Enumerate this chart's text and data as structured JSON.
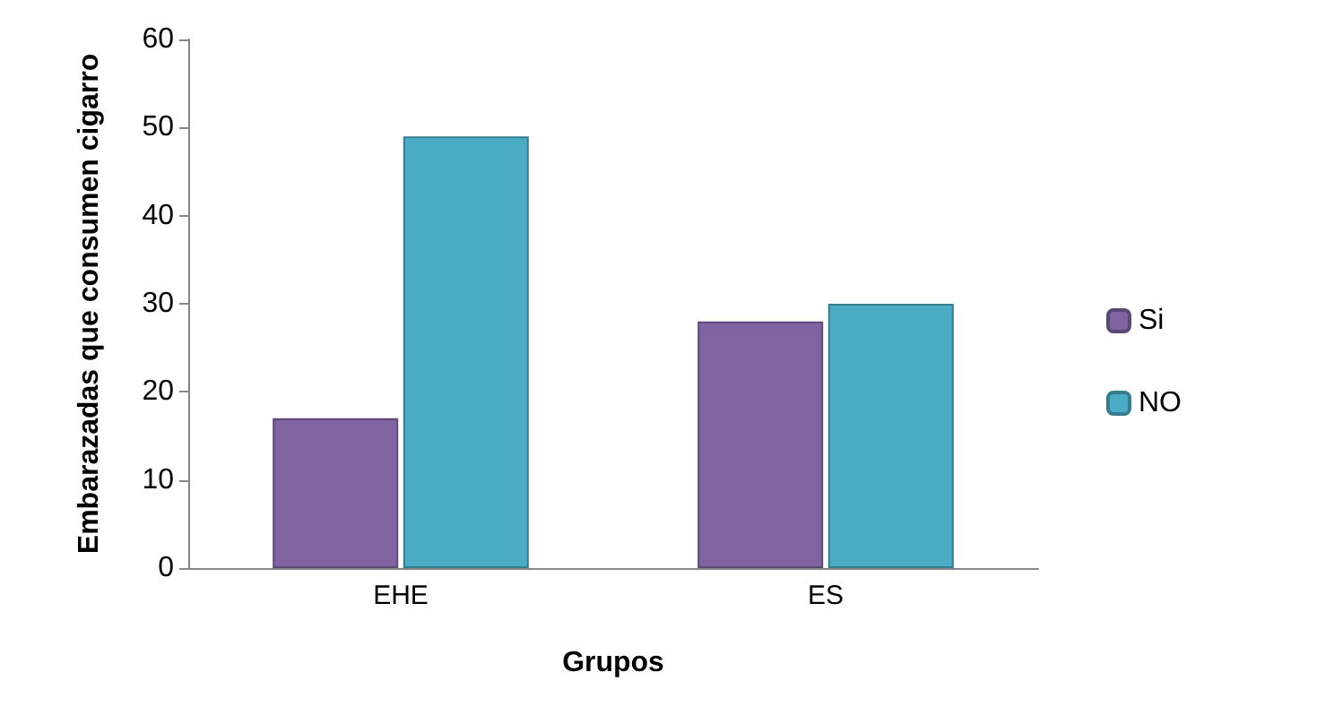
{
  "chart_data": {
    "type": "bar",
    "xlabel": "Grupos",
    "ylabel": "Embarazadas que consumen cigarro",
    "categories": [
      "EHE",
      "ES"
    ],
    "series": [
      {
        "name": "Si",
        "color": "#8064a2",
        "values": [
          17,
          28
        ]
      },
      {
        "name": "NO",
        "color": "#4bacc6",
        "values": [
          49,
          30
        ]
      }
    ],
    "ylim": [
      0,
      60
    ],
    "yticks": [
      0,
      10,
      20,
      30,
      40,
      50,
      60
    ],
    "grid": false,
    "legend": "right"
  }
}
